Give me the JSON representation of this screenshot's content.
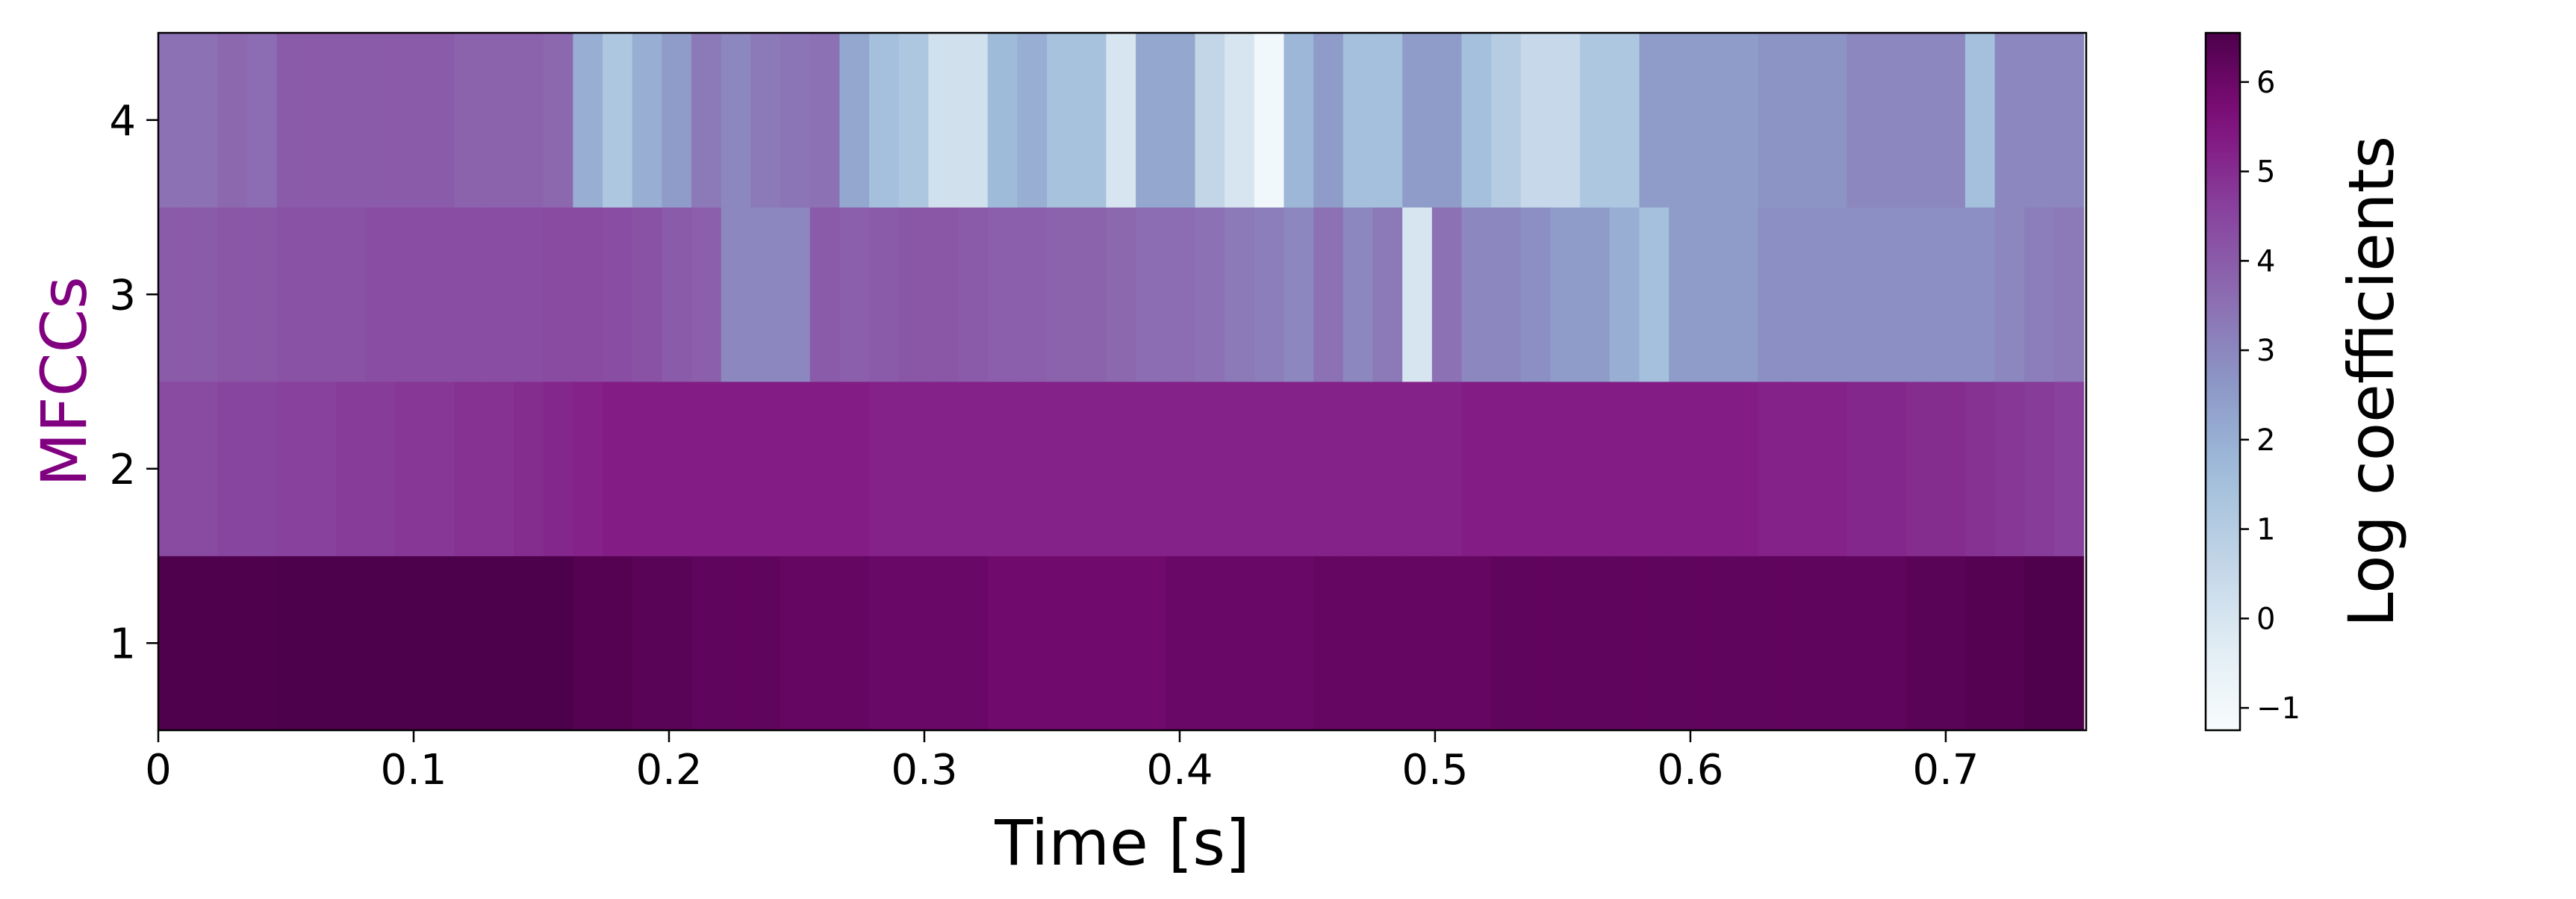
{
  "chart_data": {
    "type": "heatmap",
    "title": "",
    "xlabel": "Time [s]",
    "ylabel": "MFCCs",
    "ylabel_color": "#800080",
    "colorbar_label": "Log coefficients",
    "colormap": "BuPu",
    "clim": [
      -1.25,
      6.55
    ],
    "xlim": [
      0,
      0.755
    ],
    "frame_duration": 0.0116,
    "x_ticks": [
      0,
      0.1,
      0.2,
      0.3,
      0.4,
      0.5,
      0.6,
      0.7
    ],
    "x_tick_labels": [
      "0",
      "0.1",
      "0.2",
      "0.3",
      "0.4",
      "0.5",
      "0.6",
      "0.7"
    ],
    "y_categories": [
      "1",
      "2",
      "3",
      "4"
    ],
    "colorbar_ticks": [
      -1,
      0,
      1,
      2,
      3,
      4,
      5,
      6
    ],
    "colorbar_tick_labels": [
      "−1",
      "0",
      "1",
      "2",
      "3",
      "4",
      "5",
      "6"
    ],
    "series": [
      {
        "name": "1",
        "values": [
          6.5,
          6.5,
          6.5,
          6.5,
          6.6,
          6.6,
          6.6,
          6.6,
          6.6,
          6.6,
          6.6,
          6.6,
          6.6,
          6.6,
          6.4,
          6.4,
          6.3,
          6.3,
          6.2,
          6.2,
          6.2,
          6.1,
          6.1,
          6.1,
          6.0,
          6.0,
          6.0,
          6.0,
          5.9,
          5.9,
          5.9,
          5.9,
          5.9,
          5.9,
          6.0,
          6.0,
          6.0,
          6.0,
          6.0,
          6.1,
          6.1,
          6.1,
          6.1,
          6.1,
          6.1,
          6.2,
          6.2,
          6.2,
          6.2,
          6.2,
          6.2,
          6.2,
          6.2,
          6.2,
          6.2,
          6.2,
          6.2,
          6.2,
          6.2,
          6.3,
          6.3,
          6.4,
          6.4,
          6.5,
          6.5
        ]
      },
      {
        "name": "2",
        "values": [
          4.4,
          4.4,
          4.5,
          4.5,
          4.6,
          4.6,
          4.7,
          4.7,
          4.8,
          4.8,
          4.9,
          4.9,
          5.0,
          5.1,
          5.2,
          5.3,
          5.3,
          5.3,
          5.3,
          5.3,
          5.3,
          5.3,
          5.3,
          5.3,
          5.2,
          5.2,
          5.2,
          5.2,
          5.2,
          5.2,
          5.2,
          5.2,
          5.2,
          5.2,
          5.2,
          5.2,
          5.2,
          5.2,
          5.2,
          5.2,
          5.2,
          5.2,
          5.2,
          5.2,
          5.3,
          5.3,
          5.3,
          5.3,
          5.3,
          5.3,
          5.3,
          5.3,
          5.3,
          5.3,
          5.2,
          5.2,
          5.2,
          5.1,
          5.1,
          5.0,
          5.0,
          4.9,
          4.8,
          4.7,
          4.6
        ]
      },
      {
        "name": "3",
        "values": [
          4.0,
          4.0,
          4.1,
          4.1,
          4.2,
          4.2,
          4.2,
          4.3,
          4.3,
          4.3,
          4.3,
          4.3,
          4.3,
          4.4,
          4.4,
          4.3,
          4.2,
          4.0,
          3.9,
          3.0,
          3.0,
          3.0,
          4.0,
          3.9,
          4.0,
          4.1,
          4.1,
          4.0,
          3.9,
          3.9,
          3.8,
          3.8,
          3.7,
          3.6,
          3.6,
          3.5,
          3.3,
          3.2,
          3.0,
          3.5,
          3.0,
          3.3,
          0.0,
          3.5,
          3.0,
          3.0,
          2.8,
          2.5,
          2.5,
          2.0,
          1.5,
          2.5,
          2.5,
          2.5,
          2.8,
          2.8,
          2.8,
          2.8,
          2.8,
          2.8,
          2.8,
          2.8,
          3.0,
          3.2,
          3.3
        ]
      },
      {
        "name": "4",
        "values": [
          3.5,
          3.5,
          3.7,
          3.6,
          4.0,
          4.0,
          4.0,
          4.0,
          4.0,
          4.0,
          3.8,
          3.8,
          3.8,
          3.7,
          2.0,
          1.2,
          2.0,
          2.5,
          3.3,
          3.0,
          3.3,
          3.4,
          3.5,
          2.2,
          1.5,
          1.2,
          0.2,
          0.2,
          1.7,
          2.0,
          1.4,
          1.4,
          0.0,
          2.2,
          2.2,
          0.6,
          0.0,
          -1.0,
          1.8,
          2.5,
          1.5,
          1.5,
          2.5,
          2.5,
          1.5,
          1.0,
          0.5,
          0.5,
          1.2,
          1.2,
          2.5,
          2.5,
          2.5,
          2.5,
          2.7,
          2.7,
          2.7,
          3.0,
          3.0,
          3.0,
          3.0,
          1.5,
          3.0,
          3.0,
          3.0
        ]
      }
    ]
  }
}
